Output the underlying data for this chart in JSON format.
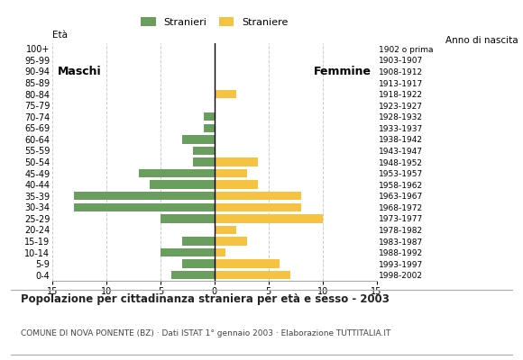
{
  "age_groups": [
    "0-4",
    "5-9",
    "10-14",
    "15-19",
    "20-24",
    "25-29",
    "30-34",
    "35-39",
    "40-44",
    "45-49",
    "50-54",
    "55-59",
    "60-64",
    "65-69",
    "70-74",
    "75-79",
    "80-84",
    "85-89",
    "90-94",
    "95-99",
    "100+"
  ],
  "birth_years": [
    "1998-2002",
    "1993-1997",
    "1988-1992",
    "1983-1987",
    "1978-1982",
    "1973-1977",
    "1968-1972",
    "1963-1967",
    "1958-1962",
    "1953-1957",
    "1948-1952",
    "1943-1947",
    "1938-1942",
    "1933-1937",
    "1928-1932",
    "1923-1927",
    "1918-1922",
    "1913-1917",
    "1908-1912",
    "1903-1907",
    "1902 o prima"
  ],
  "males": [
    4,
    3,
    5,
    3,
    0,
    5,
    13,
    13,
    6,
    7,
    2,
    2,
    3,
    1,
    1,
    0,
    0,
    0,
    0,
    0,
    0
  ],
  "females": [
    7,
    6,
    1,
    3,
    2,
    10,
    8,
    8,
    4,
    3,
    4,
    0,
    0,
    0,
    0,
    0,
    2,
    0,
    0,
    0,
    0
  ],
  "male_color": "#6a9e5f",
  "female_color": "#f5c242",
  "bar_height": 0.75,
  "xlim": 15,
  "title": "Popolazione per cittadinanza straniera per età e sesso - 2003",
  "subtitle": "COMUNE DI NOVA PONENTE (BZ) · Dati ISTAT 1° gennaio 2003 · Elaborazione TUTTITALIA.IT",
  "legend_male": "Stranieri",
  "legend_female": "Straniere",
  "label_eta": "Età",
  "label_anno": "Anno di nascita",
  "label_maschi": "Maschi",
  "label_femmine": "Femmine",
  "grid_color": "#cccccc",
  "background_color": "#ffffff",
  "title_fontsize": 8.5,
  "subtitle_fontsize": 6.5,
  "tick_fontsize": 7,
  "legend_fontsize": 8,
  "label_fontsize": 7.5,
  "maschi_femmine_fontsize": 9
}
